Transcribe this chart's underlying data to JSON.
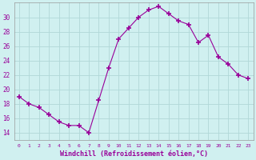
{
  "x": [
    0,
    1,
    2,
    3,
    4,
    5,
    6,
    7,
    8,
    9,
    10,
    11,
    12,
    13,
    14,
    15,
    16,
    17,
    18,
    19,
    20,
    21,
    22,
    23
  ],
  "y": [
    19.0,
    18.0,
    17.5,
    16.5,
    15.5,
    15.0,
    15.0,
    14.0,
    18.5,
    23.0,
    27.0,
    28.5,
    30.0,
    31.0,
    31.5,
    30.5,
    29.5,
    29.0,
    26.5,
    27.5,
    24.5,
    23.5,
    22.0,
    21.5
  ],
  "line_color": "#990099",
  "marker": "+",
  "marker_size": 4,
  "bg_color": "#d0f0f0",
  "grid_color": "#b0d8d8",
  "xlabel": "Windchill (Refroidissement éolien,°C)",
  "xlabel_color": "#990099",
  "ylabel_ticks": [
    14,
    16,
    18,
    20,
    22,
    24,
    26,
    28,
    30
  ],
  "ylim": [
    13.0,
    32.0
  ],
  "xlim": [
    -0.5,
    23.5
  ],
  "xtick_labels": [
    "0",
    "1",
    "2",
    "3",
    "4",
    "5",
    "6",
    "7",
    "8",
    "9",
    "10",
    "11",
    "12",
    "13",
    "14",
    "15",
    "16",
    "17",
    "18",
    "19",
    "20",
    "21",
    "22",
    "23"
  ],
  "tick_color": "#990099",
  "tick_label_color": "#990099",
  "spine_color": "#999999"
}
